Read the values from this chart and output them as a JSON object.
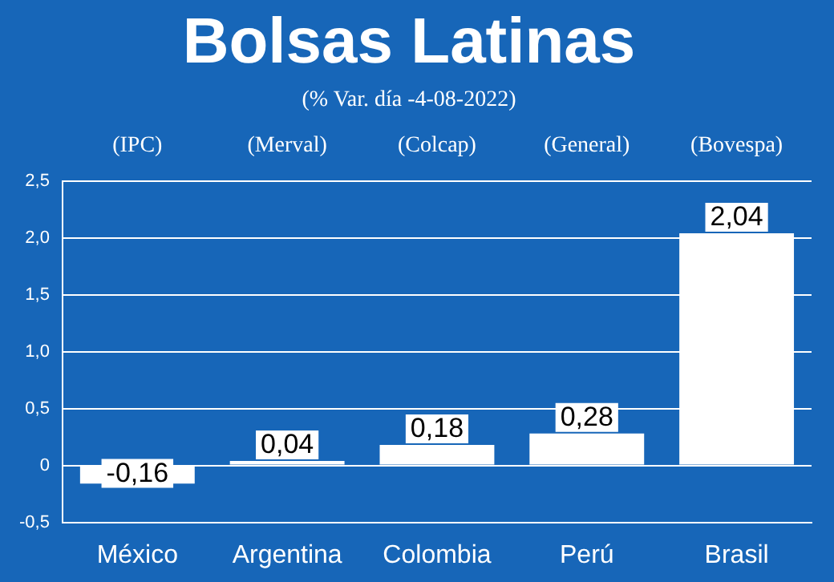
{
  "chart_data": {
    "type": "bar",
    "title": "Bolsas Latinas",
    "subtitle": "(% Var. día -4-08-2022)",
    "categories": [
      "México",
      "Argentina",
      "Colombia",
      "Perú",
      "Brasil"
    ],
    "values": [
      -0.16,
      0.04,
      0.18,
      0.28,
      2.04
    ],
    "value_labels": [
      "-0,16",
      "0,04",
      "0,18",
      "0,28",
      "2,04"
    ],
    "color": "#ffffff",
    "annotations": [
      "(IPC)",
      "(Merval)",
      "(Colcap)",
      "(General)",
      "(Bovespa)"
    ],
    "ylim": [
      -0.5,
      2.5
    ],
    "yticks": [
      {
        "value": -0.5,
        "label": "-0,5"
      },
      {
        "value": 0,
        "label": "0"
      },
      {
        "value": 0.5,
        "label": "0,5"
      },
      {
        "value": 1,
        "label": "1,0"
      },
      {
        "value": 1.5,
        "label": "1,5"
      },
      {
        "value": 2,
        "label": "2,0"
      },
      {
        "value": 2.5,
        "label": "2,5"
      }
    ],
    "grid": "y",
    "legend": false
  }
}
